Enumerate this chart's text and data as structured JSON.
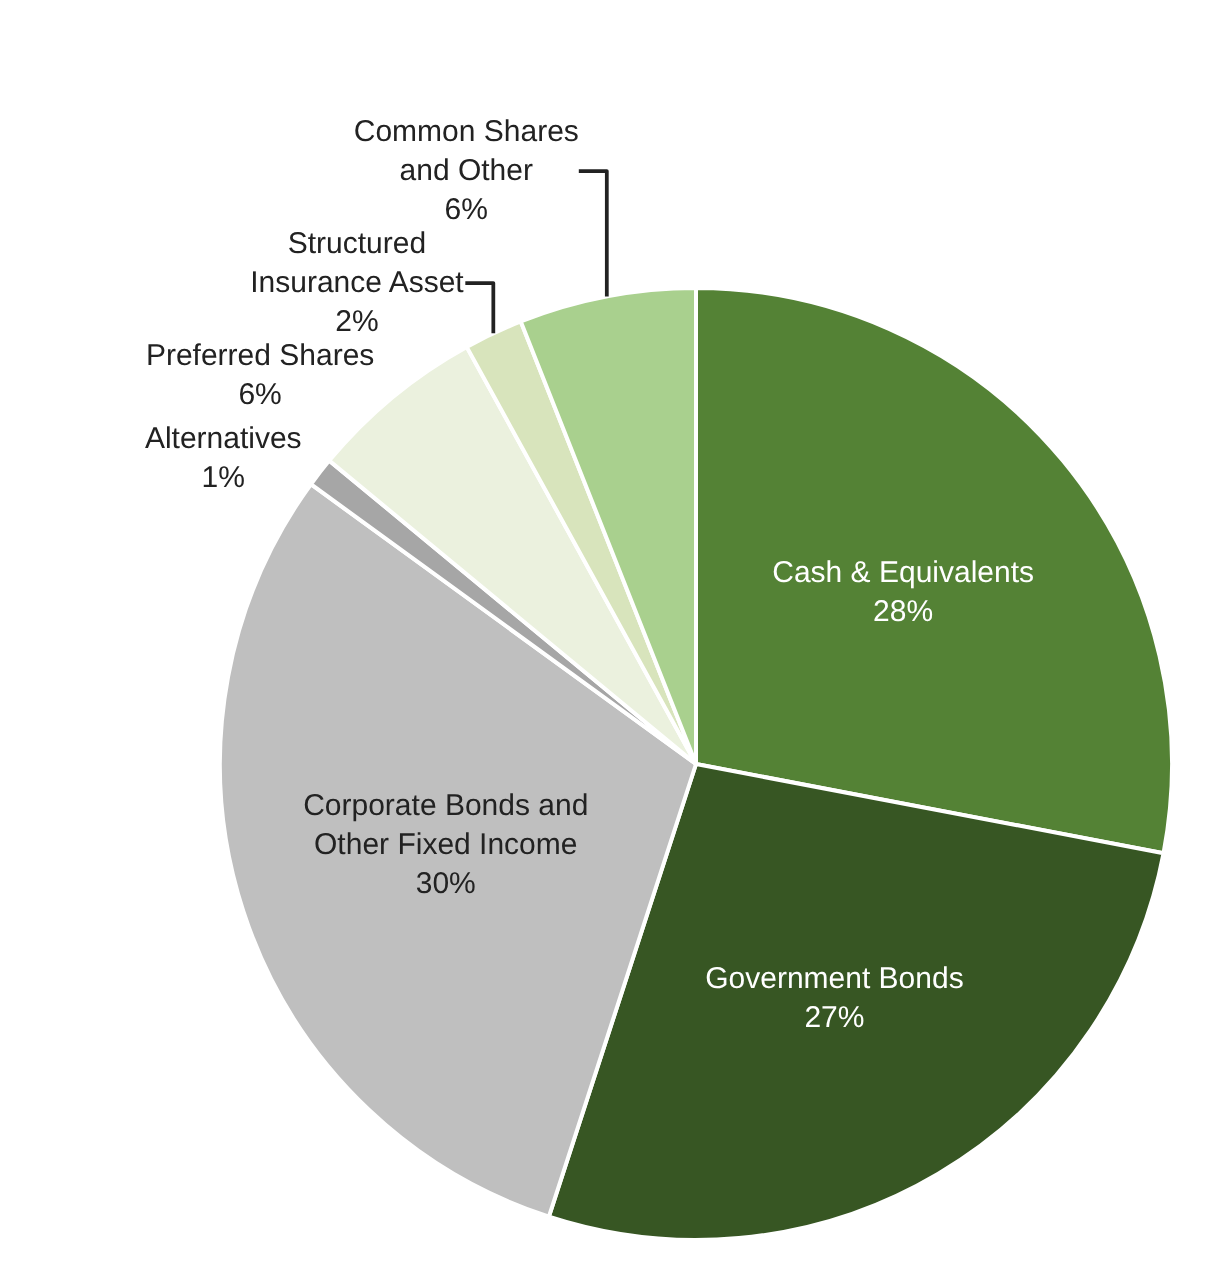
{
  "chart_data": {
    "type": "pie",
    "categories": [
      "Cash & Equivalents",
      "Government Bonds",
      "Corporate Bonds and Other Fixed Income",
      "Alternatives",
      "Preferred Shares",
      "Structured Insurance Asset",
      "Common Shares and Other"
    ],
    "values": [
      28,
      27,
      30,
      1,
      6,
      2,
      6
    ],
    "value_labels": [
      "28%",
      "27%",
      "30%",
      "1%",
      "6%",
      "2%",
      "6%"
    ],
    "colors": [
      "#548235",
      "#375623",
      "#bfbfbf",
      "#a6a6a6",
      "#ebf1de",
      "#d8e4bc",
      "#a9d08e"
    ],
    "legend": false
  }
}
